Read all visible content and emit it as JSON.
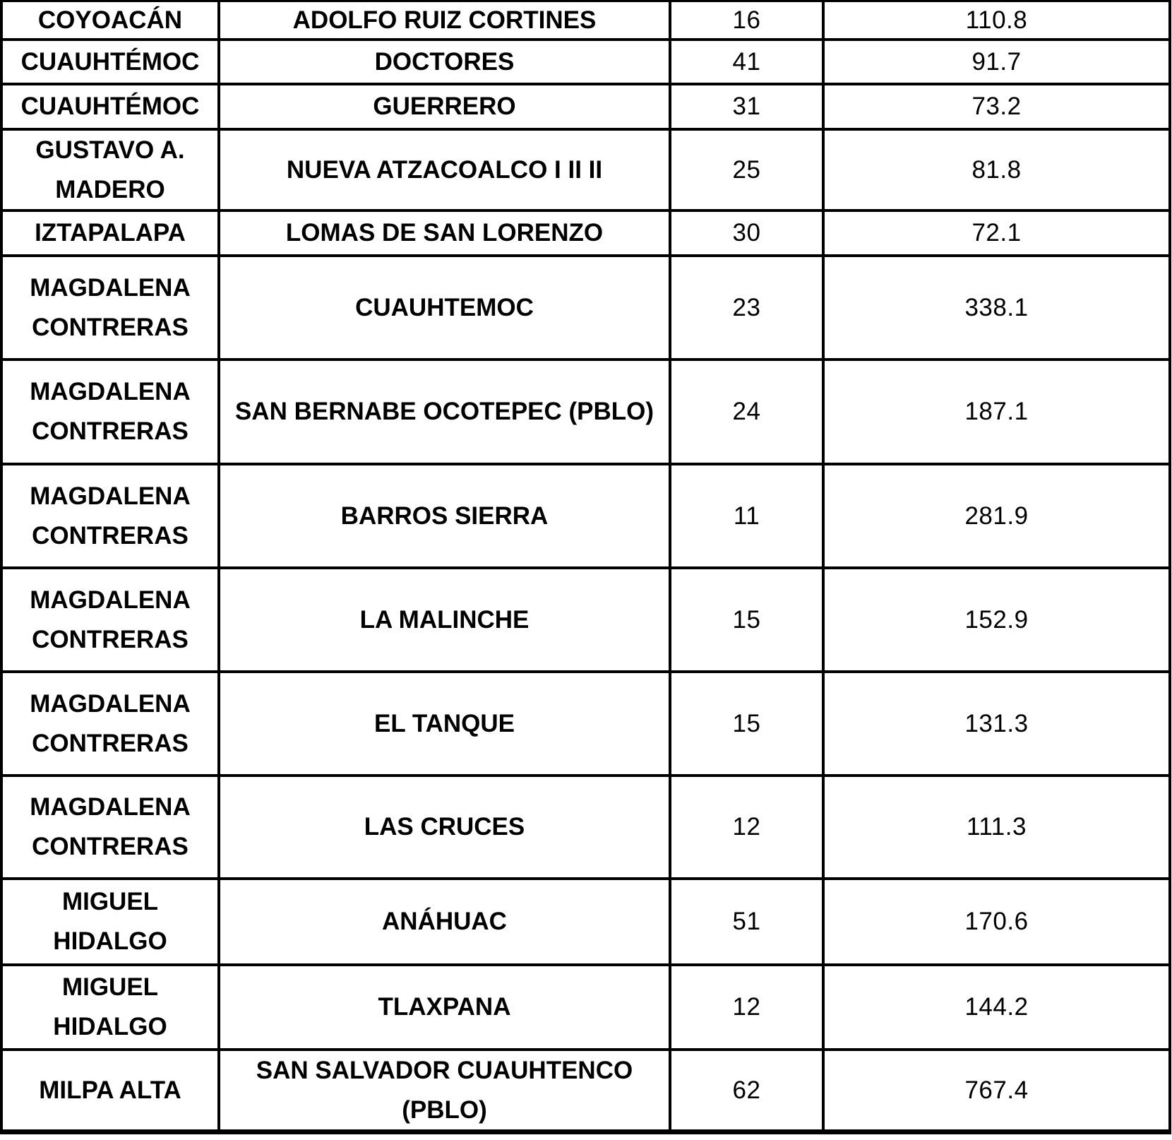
{
  "colors": {
    "border": "#000000",
    "text": "#000000",
    "background": "#ffffff"
  },
  "table": {
    "rows": [
      [
        "COYOACÁN",
        "ADOLFO RUIZ CORTINES",
        "16",
        "110.8"
      ],
      [
        "CUAUHTÉMOC",
        "DOCTORES",
        "41",
        "91.7"
      ],
      [
        "CUAUHTÉMOC",
        "GUERRERO",
        "31",
        "73.2"
      ],
      [
        "GUSTAVO A.\nMADERO",
        "NUEVA ATZACOALCO I II II",
        "25",
        "81.8"
      ],
      [
        "IZTAPALAPA",
        "LOMAS DE SAN LORENZO",
        "30",
        "72.1"
      ],
      [
        "MAGDALENA\nCONTRERAS",
        "CUAUHTEMOC",
        "23",
        "338.1"
      ],
      [
        "MAGDALENA\nCONTRERAS",
        "SAN BERNABE OCOTEPEC (PBLO)",
        "24",
        "187.1"
      ],
      [
        "MAGDALENA\nCONTRERAS",
        "BARROS SIERRA",
        "11",
        "281.9"
      ],
      [
        "MAGDALENA\nCONTRERAS",
        "LA MALINCHE",
        "15",
        "152.9"
      ],
      [
        "MAGDALENA\nCONTRERAS",
        "EL TANQUE",
        "15",
        "131.3"
      ],
      [
        "MAGDALENA\nCONTRERAS",
        "LAS CRUCES",
        "12",
        "111.3"
      ],
      [
        "MIGUEL\nHIDALGO",
        "ANÁHUAC",
        "51",
        "170.6"
      ],
      [
        "MIGUEL\nHIDALGO",
        "TLAXPANA",
        "12",
        "144.2"
      ],
      [
        "MILPA ALTA",
        "SAN SALVADOR CUAUHTENCO\n(PBLO)",
        "62",
        "767.4"
      ]
    ]
  }
}
